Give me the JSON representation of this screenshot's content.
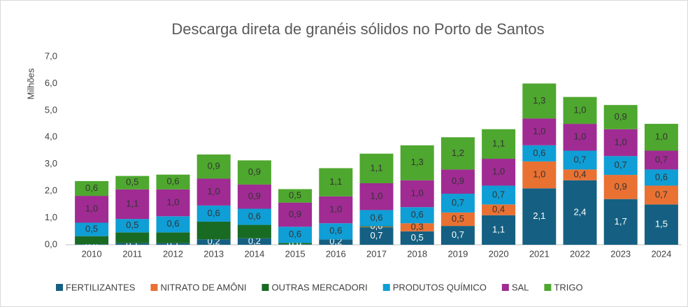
{
  "chart_data": {
    "type": "stacked_bar",
    "title": "Descarga direta de granéis sólidos no Porto de Santos",
    "y_axis_label": "Milhões",
    "categories": [
      "2010",
      "2011",
      "2012",
      "2013",
      "2014",
      "2015",
      "2016",
      "2017",
      "2018",
      "2019",
      "2020",
      "2021",
      "2022",
      "2023",
      "2024"
    ],
    "ylim": [
      0,
      7
    ],
    "yticks": [
      {
        "value": 0,
        "label": "0,0"
      },
      {
        "value": 1,
        "label": "1,0"
      },
      {
        "value": 2,
        "label": "2,0"
      },
      {
        "value": 3,
        "label": "3,0"
      },
      {
        "value": 4,
        "label": "4,0"
      },
      {
        "value": 5,
        "label": "5,0"
      },
      {
        "value": 6,
        "label": "6,0"
      },
      {
        "value": 7,
        "label": "7,0"
      }
    ],
    "grid": false,
    "legend": "bottom",
    "series": [
      {
        "name": "FERTILIZANTES",
        "color": "#156082",
        "values": [
          0.02,
          0.06,
          0.06,
          0.2,
          0.24,
          0.02,
          0.2,
          0.65,
          0.5,
          0.7,
          1.1,
          2.1,
          2.4,
          1.7,
          1.5
        ],
        "value_labels": [
          "0,0",
          "0,1",
          "0,1",
          "0,2",
          "0,2",
          "0,0",
          "0,2",
          "0,7",
          "0,5",
          "0,7",
          "1,1",
          "2,1",
          "2,4",
          "1,7",
          "1,5"
        ]
      },
      {
        "name": "NITRATO DE AMÔNI",
        "color": "#e97132",
        "values": [
          0,
          0,
          0,
          0,
          0,
          0,
          0,
          0.02,
          0.3,
          0.5,
          0.4,
          1.0,
          0.4,
          0.9,
          0.7
        ],
        "value_labels": [
          null,
          null,
          null,
          null,
          null,
          null,
          null,
          "0,0",
          "0,3",
          "0,5",
          "0,4",
          "1,0",
          "0,4",
          "0,9",
          "0,7"
        ]
      },
      {
        "name": "OUTRAS MERCADORI",
        "color": "#196b24",
        "values": [
          0.3,
          0.4,
          0.4,
          0.66,
          0.5,
          0.05,
          0,
          0.02,
          0,
          0,
          0,
          0,
          0,
          0,
          0
        ],
        "value_labels": [
          null,
          null,
          null,
          null,
          null,
          "0,0",
          null,
          "0,0",
          null,
          null,
          null,
          null,
          null,
          null,
          null
        ]
      },
      {
        "name": "PRODUTOS QUÍMICO",
        "color": "#0f9ed5",
        "values": [
          0.5,
          0.5,
          0.6,
          0.6,
          0.6,
          0.6,
          0.6,
          0.6,
          0.6,
          0.7,
          0.7,
          0.6,
          0.7,
          0.7,
          0.6
        ],
        "value_labels": [
          "0,5",
          "0,5",
          "0,6",
          "0,6",
          "0,6",
          "0,6",
          "0,6",
          "0,6",
          "0,6",
          "0,7",
          "0,7",
          "0,6",
          "0,7",
          "0,7",
          "0,6"
        ]
      },
      {
        "name": "SAL",
        "color": "#a02b93",
        "values": [
          1.0,
          1.1,
          1.0,
          1.0,
          0.9,
          0.9,
          1.0,
          1.0,
          1.0,
          0.9,
          1.0,
          1.0,
          1.0,
          1.0,
          0.7
        ],
        "value_labels": [
          "1,0",
          "1,1",
          "1,0",
          "1,0",
          "0,9",
          "0,9",
          "1,0",
          "1,0",
          "1,0",
          "0,9",
          "1,0",
          "1,0",
          "1,0",
          "1,0",
          "0,7"
        ]
      },
      {
        "name": "TRIGO",
        "color": "#4ea72e",
        "values": [
          0.55,
          0.5,
          0.55,
          0.9,
          0.9,
          0.5,
          1.05,
          1.1,
          1.3,
          1.2,
          1.1,
          1.3,
          1.0,
          0.9,
          1.0
        ],
        "value_labels": [
          "0,6",
          "0,5",
          "0,6",
          "0,9",
          "0,9",
          "0,5",
          "1,1",
          "1,1",
          "1,3",
          "1,2",
          "1,1",
          "1,3",
          "1,0",
          "0,9",
          "1,0"
        ]
      }
    ]
  }
}
